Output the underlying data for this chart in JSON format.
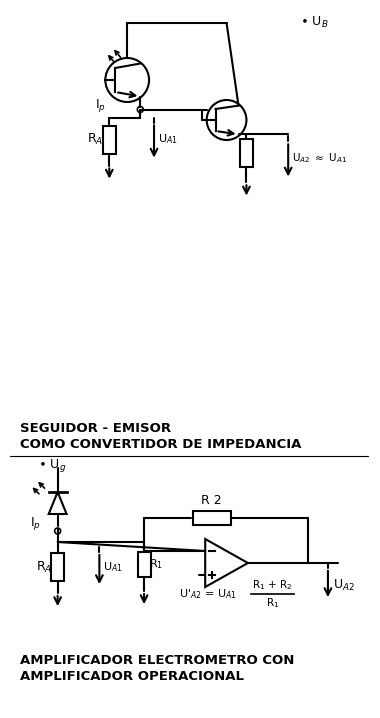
{
  "bg_color": "#ffffff",
  "line_color": "#000000",
  "title1_line1": "SEGUIDOR - EMISOR",
  "title1_line2": "COMO CONVERTIDOR DE IMPEDANCIA",
  "title2_line1": "AMPLIFICADOR ELECTROMETRO CON",
  "title2_line2": "AMPLIFICADOR OPERACIONAL"
}
